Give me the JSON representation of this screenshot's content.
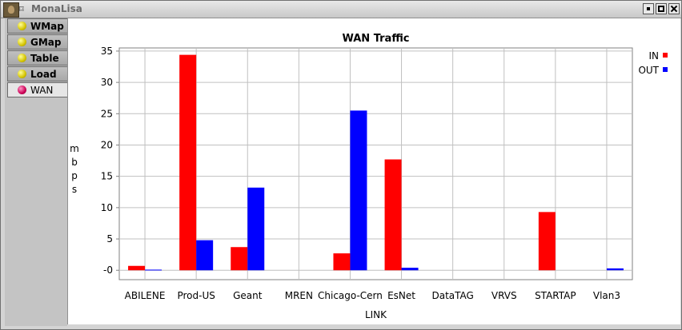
{
  "window": {
    "title": "MonaLisa"
  },
  "tabs": [
    {
      "label": "WMap",
      "active": false
    },
    {
      "label": "GMap",
      "active": false
    },
    {
      "label": "Table",
      "active": false
    },
    {
      "label": "Load",
      "active": false
    },
    {
      "label": "WAN",
      "active": true
    }
  ],
  "chart_data": {
    "type": "bar",
    "title": "WAN Traffic",
    "xlabel": "LINK",
    "ylabel": "mbps",
    "categories": [
      "ABILENE",
      "Prod-US",
      "Geant",
      "MREN",
      "Chicago-Cern",
      "EsNet",
      "DataTAG",
      "VRVS",
      "STARTAP",
      "Vlan3"
    ],
    "series": [
      {
        "name": "IN",
        "color": "#ff0000",
        "values": [
          0.7,
          34.4,
          3.7,
          0,
          2.7,
          17.7,
          0,
          0,
          9.3,
          0
        ]
      },
      {
        "name": "OUT",
        "color": "#0000ff",
        "values": [
          0.1,
          4.8,
          13.2,
          0,
          25.5,
          0.4,
          0,
          0,
          0,
          0.3
        ]
      }
    ],
    "yticks": [
      "0",
      "5",
      "10",
      "15",
      "20",
      "25",
      "30",
      "35"
    ],
    "ylim": [
      -1.5,
      35.5
    ],
    "grid": true,
    "legend": "top-right"
  }
}
